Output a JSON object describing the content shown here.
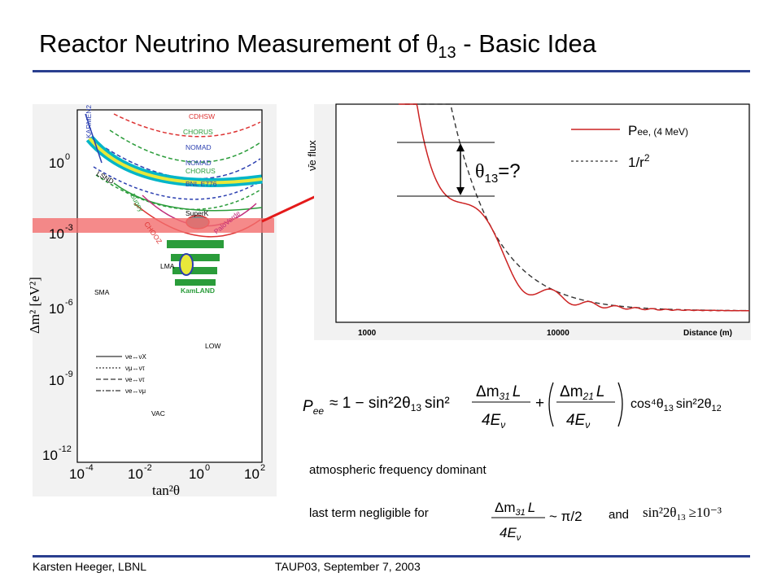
{
  "title": {
    "prefix": "Reactor Neutrino Measurement of ",
    "theta": "θ",
    "sub": "13",
    "suffix": " - Basic Idea"
  },
  "footer": {
    "author": "Karsten Heeger, LBNL",
    "event": "TAUP03, September 7, 2003"
  },
  "left_plot": {
    "y_ticks": [
      "10",
      "10",
      "10",
      "10",
      "10"
    ],
    "y_exps": [
      "0",
      "-3",
      "-6",
      "-9",
      "-12"
    ],
    "x_ticks": [
      "10",
      "10",
      "10",
      "10"
    ],
    "x_exps": [
      "-4",
      "-2",
      "0",
      "2"
    ],
    "ylabel": "Δm² [eV²]",
    "xlabel": "tan²θ",
    "regions": [
      "CDHSW",
      "CHORUS",
      "NOMAD",
      "NOMAD",
      "CHORUS",
      "KARMEN2",
      "LSND",
      "BNL E776",
      "Bugey",
      "SuperK",
      "PaloVerde",
      "CHOOZ",
      "LMA",
      "KamLAND",
      "SMA",
      "LOW",
      "VAC"
    ],
    "legend": [
      "νe↔νX",
      "νμ↔ντ",
      "νe↔ντ",
      "νe↔νμ"
    ],
    "band_color": "#f26d6d"
  },
  "flux_plot": {
    "ylabel": "ν̄e flux",
    "x_ticks": [
      "1000",
      "10000",
      "Distance (m)"
    ],
    "legend": [
      {
        "label": "P",
        "sub": "ee, (4 MeV)"
      },
      {
        "label": "1/r",
        "sup": "2"
      }
    ],
    "annotation_theta": "θ",
    "annotation_sub": "13",
    "annotation_rest": "=?",
    "curve_color": "#cc2222"
  },
  "formula": {
    "lhs": "P",
    "lhs_sub": "ee",
    "approx": "≈ 1 − sin²2θ",
    "term1_sub": "13",
    "sin2": "sin²",
    "frac1_num": "Δm",
    "frac1_num_sub": "31",
    "frac_num_tail": "L",
    "frac_den": "4E",
    "frac_den_sub": "ν",
    "plus": "+",
    "frac2_num_sub": "21",
    "tail": "cos⁴θ",
    "tail_sub1": "13",
    "tail2": "sin²2θ",
    "tail_sub2": "12"
  },
  "notes": {
    "atmospheric": "atmospheric frequency dominant",
    "negligible": "last term negligible for",
    "and": "and",
    "cond1_tail": "~ π/2",
    "cond2": "sin²2θ",
    "cond2_sub": "13",
    "cond2_tail": "≥10⁻³"
  }
}
